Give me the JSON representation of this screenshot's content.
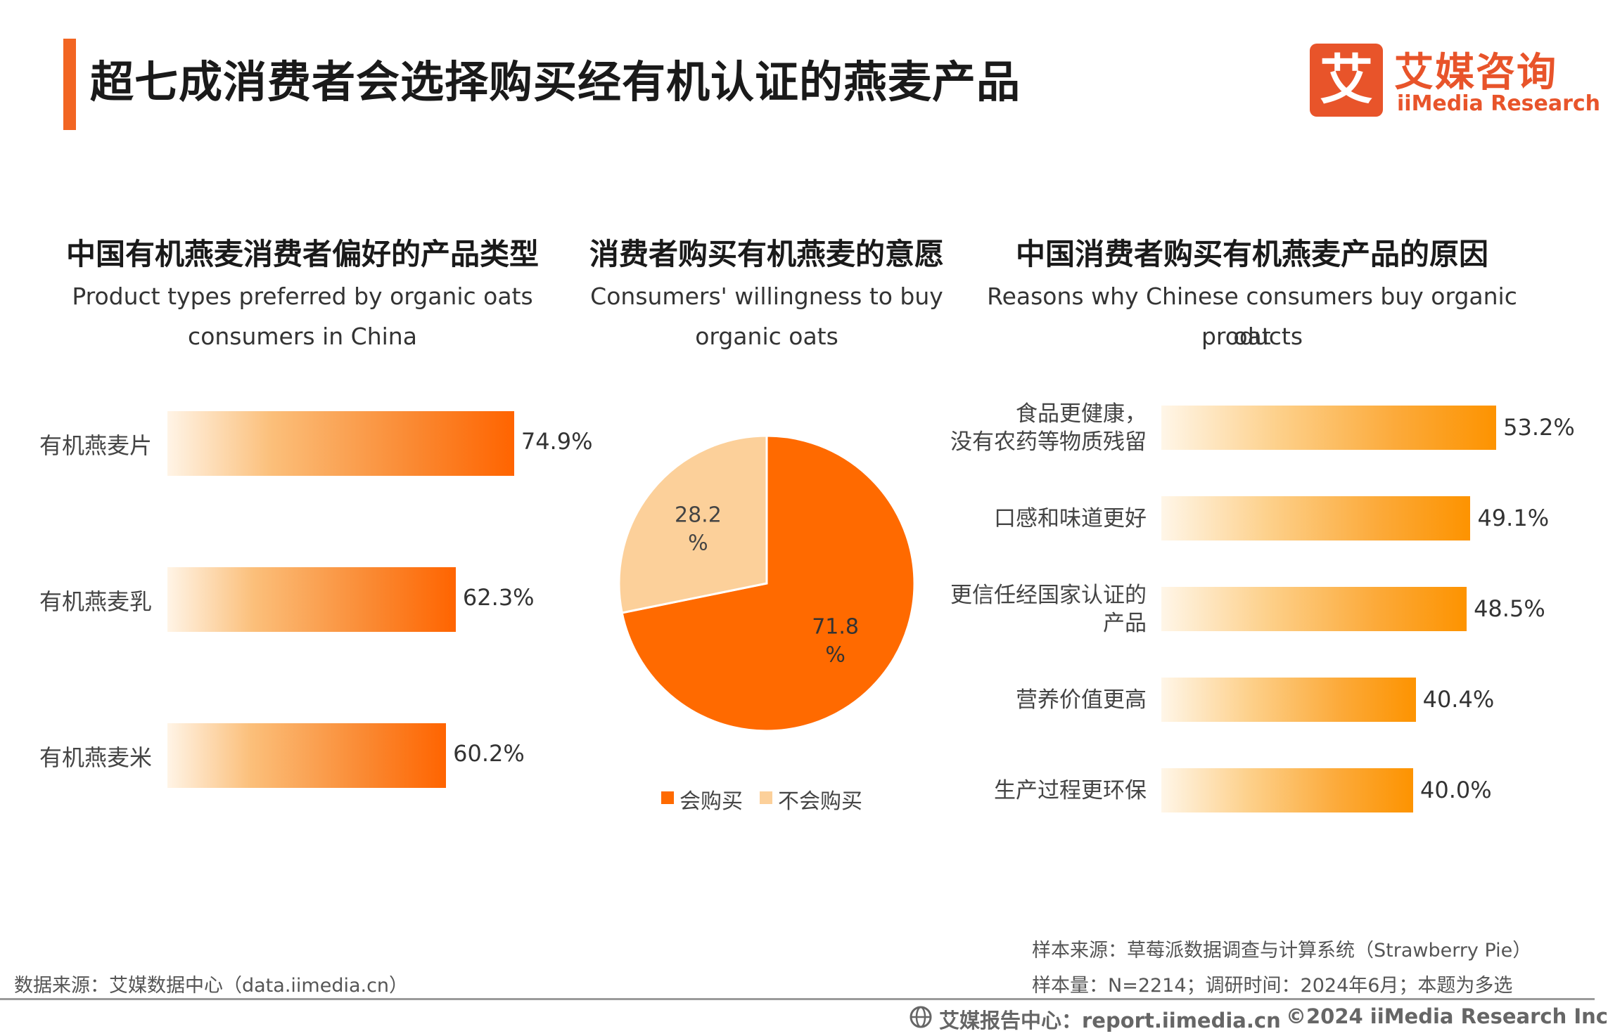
{
  "header": {
    "title": "超七成消费者会选择购买经有机认证的燕麦产品",
    "logo_mark": "艾",
    "logo_cn": "艾媒咨询",
    "logo_en": "iiMedia Research"
  },
  "colors": {
    "accent": "#f26522",
    "bar_left_end": "#ff6400",
    "bar_right_end": "#fd9300",
    "pie_buy": "#ff6a00",
    "pie_not_buy": "#fcd09a"
  },
  "chart_data": [
    {
      "type": "bar",
      "orientation": "horizontal",
      "title": "中国有机燕麦消费者偏好的产品类型",
      "subtitle_line1": "Product types preferred by organic oats",
      "subtitle_line2": "consumers in China",
      "categories": [
        "有机燕麦片",
        "有机燕麦乳",
        "有机燕麦米"
      ],
      "values": [
        74.9,
        62.3,
        60.2
      ],
      "value_labels": [
        "74.9%",
        "62.3%",
        "60.2%"
      ],
      "xlim": [
        0,
        100
      ]
    },
    {
      "type": "pie",
      "title": "消费者购买有机燕麦的意愿",
      "subtitle_line1": "Consumers' willingness to buy",
      "subtitle_line2": "organic oats",
      "slices": [
        {
          "name": "会购买",
          "value": 71.8,
          "label_value": "71.8",
          "label_unit": "%"
        },
        {
          "name": "不会购买",
          "value": 28.2,
          "label_value": "28.2",
          "label_unit": "%"
        }
      ],
      "legend_position": "bottom"
    },
    {
      "type": "bar",
      "orientation": "horizontal",
      "title": "中国消费者购买有机燕麦产品的原因",
      "subtitle_line1": "Reasons why Chinese consumers buy organic oat",
      "subtitle_line2": "products",
      "categories": [
        [
          "食品更健康，",
          "没有农药等物质残留"
        ],
        [
          "口感和味道更好"
        ],
        [
          "更信任经国家认证的",
          "产品"
        ],
        [
          "营养价值更高"
        ],
        [
          "生产过程更环保"
        ]
      ],
      "values": [
        53.2,
        49.1,
        48.5,
        40.4,
        40.0
      ],
      "value_labels": [
        "53.2%",
        "49.1%",
        "48.5%",
        "40.4%",
        "40.0%"
      ],
      "xlim": [
        0,
        100
      ]
    }
  ],
  "notes": {
    "source_left": "数据来源：艾媒数据中心（data.iimedia.cn）",
    "sample_source": "样本来源：草莓派数据调查与计算系统（Strawberry Pie）",
    "sample_size": "样本量：N=2214；调研时间：2024年6月；本题为多选"
  },
  "footer": {
    "report_center": "艾媒报告中心：report.iimedia.cn",
    "copyright": "©2024  iiMedia Research Inc"
  }
}
